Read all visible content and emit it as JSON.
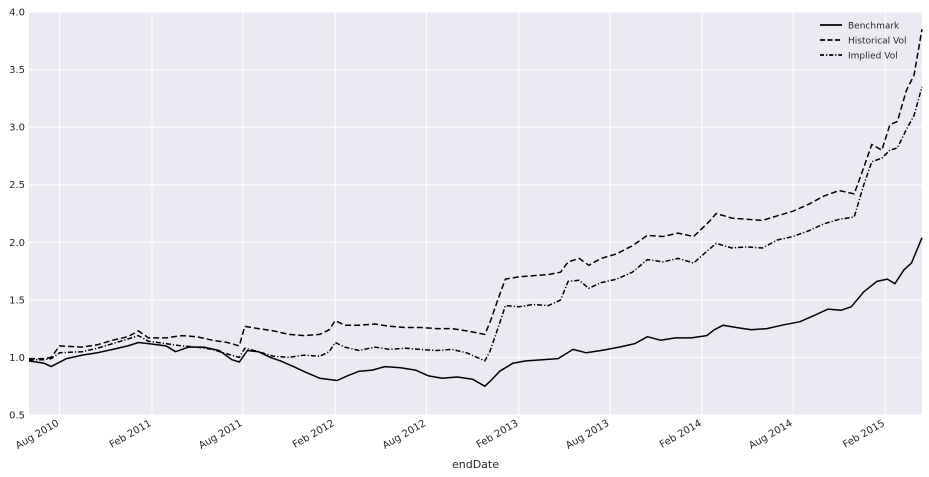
{
  "chart_data": {
    "type": "line",
    "title": "",
    "xlabel": "endDate",
    "ylabel": "",
    "ylim": [
      0.5,
      4.0
    ],
    "y_ticks": [
      "0.5",
      "1.0",
      "1.5",
      "2.0",
      "2.5",
      "3.0",
      "3.5",
      "4.0"
    ],
    "x_range": [
      "2010-06-01",
      "2015-04-15"
    ],
    "x_ticks": [
      {
        "date": "2010-08-01",
        "label": "Aug 2010"
      },
      {
        "date": "2011-02-01",
        "label": "Feb 2011"
      },
      {
        "date": "2011-08-01",
        "label": "Aug 2011"
      },
      {
        "date": "2012-02-01",
        "label": "Feb 2012"
      },
      {
        "date": "2012-08-01",
        "label": "Aug 2012"
      },
      {
        "date": "2013-02-01",
        "label": "Feb 2013"
      },
      {
        "date": "2013-08-01",
        "label": "Aug 2013"
      },
      {
        "date": "2014-02-01",
        "label": "Feb 2014"
      },
      {
        "date": "2014-08-01",
        "label": "Aug 2014"
      },
      {
        "date": "2015-02-01",
        "label": "Feb 2015"
      }
    ],
    "grid": true,
    "legend_position": "top-right",
    "series": [
      {
        "name": "Benchmark",
        "style": "solid",
        "color": "#000000",
        "points": [
          [
            "2010-06-01",
            0.97
          ],
          [
            "2010-07-01",
            0.95
          ],
          [
            "2010-07-15",
            0.92
          ],
          [
            "2010-08-15",
            0.99
          ],
          [
            "2010-09-15",
            1.02
          ],
          [
            "2010-10-15",
            1.04
          ],
          [
            "2010-11-15",
            1.07
          ],
          [
            "2010-12-15",
            1.1
          ],
          [
            "2011-01-05",
            1.13
          ],
          [
            "2011-01-25",
            1.12
          ],
          [
            "2011-03-01",
            1.1
          ],
          [
            "2011-03-20",
            1.05
          ],
          [
            "2011-04-15",
            1.09
          ],
          [
            "2011-05-15",
            1.09
          ],
          [
            "2011-06-15",
            1.06
          ],
          [
            "2011-07-10",
            0.98
          ],
          [
            "2011-07-25",
            0.96
          ],
          [
            "2011-08-10",
            1.06
          ],
          [
            "2011-09-01",
            1.05
          ],
          [
            "2011-09-25",
            1.0
          ],
          [
            "2011-10-15",
            0.97
          ],
          [
            "2011-11-10",
            0.92
          ],
          [
            "2011-12-05",
            0.87
          ],
          [
            "2012-01-01",
            0.82
          ],
          [
            "2012-02-05",
            0.8
          ],
          [
            "2012-02-25",
            0.84
          ],
          [
            "2012-03-20",
            0.88
          ],
          [
            "2012-04-15",
            0.89
          ],
          [
            "2012-05-10",
            0.92
          ],
          [
            "2012-06-10",
            0.91
          ],
          [
            "2012-07-10",
            0.89
          ],
          [
            "2012-08-05",
            0.84
          ],
          [
            "2012-09-01",
            0.82
          ],
          [
            "2012-10-01",
            0.83
          ],
          [
            "2012-11-01",
            0.81
          ],
          [
            "2012-11-25",
            0.75
          ],
          [
            "2012-12-05",
            0.79
          ],
          [
            "2012-12-25",
            0.88
          ],
          [
            "2013-01-20",
            0.95
          ],
          [
            "2013-02-15",
            0.97
          ],
          [
            "2013-03-20",
            0.98
          ],
          [
            "2013-04-20",
            0.99
          ],
          [
            "2013-05-20",
            1.07
          ],
          [
            "2013-06-15",
            1.04
          ],
          [
            "2013-07-15",
            1.06
          ],
          [
            "2013-08-20",
            1.09
          ],
          [
            "2013-09-20",
            1.12
          ],
          [
            "2013-10-15",
            1.18
          ],
          [
            "2013-11-10",
            1.15
          ],
          [
            "2013-12-10",
            1.17
          ],
          [
            "2014-01-10",
            1.17
          ],
          [
            "2014-02-10",
            1.19
          ],
          [
            "2014-02-25",
            1.24
          ],
          [
            "2014-03-15",
            1.28
          ],
          [
            "2014-04-10",
            1.26
          ],
          [
            "2014-05-10",
            1.24
          ],
          [
            "2014-06-10",
            1.25
          ],
          [
            "2014-07-10",
            1.28
          ],
          [
            "2014-08-15",
            1.31
          ],
          [
            "2014-09-15",
            1.37
          ],
          [
            "2014-10-10",
            1.42
          ],
          [
            "2014-11-05",
            1.41
          ],
          [
            "2014-11-25",
            1.44
          ],
          [
            "2014-12-20",
            1.57
          ],
          [
            "2015-01-15",
            1.66
          ],
          [
            "2015-02-05",
            1.68
          ],
          [
            "2015-02-20",
            1.64
          ],
          [
            "2015-03-10",
            1.76
          ],
          [
            "2015-03-25",
            1.82
          ],
          [
            "2015-04-15",
            2.04
          ]
        ]
      },
      {
        "name": "Historical Vol",
        "style": "dashed",
        "color": "#000000",
        "points": [
          [
            "2010-06-01",
            0.99
          ],
          [
            "2010-07-01",
            0.99
          ],
          [
            "2010-07-15",
            1.0
          ],
          [
            "2010-08-01",
            1.1
          ],
          [
            "2010-09-15",
            1.09
          ],
          [
            "2010-10-15",
            1.11
          ],
          [
            "2010-11-15",
            1.15
          ],
          [
            "2010-12-15",
            1.18
          ],
          [
            "2011-01-05",
            1.23
          ],
          [
            "2011-01-25",
            1.17
          ],
          [
            "2011-03-01",
            1.17
          ],
          [
            "2011-04-01",
            1.19
          ],
          [
            "2011-05-01",
            1.18
          ],
          [
            "2011-06-01",
            1.15
          ],
          [
            "2011-07-01",
            1.13
          ],
          [
            "2011-07-25",
            1.1
          ],
          [
            "2011-08-05",
            1.27
          ],
          [
            "2011-09-01",
            1.25
          ],
          [
            "2011-10-01",
            1.23
          ],
          [
            "2011-11-01",
            1.2
          ],
          [
            "2011-12-01",
            1.19
          ],
          [
            "2012-01-01",
            1.2
          ],
          [
            "2012-01-20",
            1.24
          ],
          [
            "2012-02-01",
            1.32
          ],
          [
            "2012-02-20",
            1.28
          ],
          [
            "2012-03-20",
            1.28
          ],
          [
            "2012-04-20",
            1.29
          ],
          [
            "2012-05-20",
            1.27
          ],
          [
            "2012-06-20",
            1.26
          ],
          [
            "2012-07-20",
            1.26
          ],
          [
            "2012-08-20",
            1.25
          ],
          [
            "2012-09-20",
            1.25
          ],
          [
            "2012-10-20",
            1.23
          ],
          [
            "2012-11-25",
            1.2
          ],
          [
            "2012-12-05",
            1.3
          ],
          [
            "2012-12-25",
            1.55
          ],
          [
            "2013-01-05",
            1.68
          ],
          [
            "2013-02-01",
            1.7
          ],
          [
            "2013-03-01",
            1.71
          ],
          [
            "2013-04-01",
            1.72
          ],
          [
            "2013-04-25",
            1.74
          ],
          [
            "2013-05-10",
            1.83
          ],
          [
            "2013-06-01",
            1.86
          ],
          [
            "2013-06-20",
            1.8
          ],
          [
            "2013-07-15",
            1.86
          ],
          [
            "2013-08-15",
            1.9
          ],
          [
            "2013-09-15",
            1.97
          ],
          [
            "2013-10-15",
            2.06
          ],
          [
            "2013-11-15",
            2.05
          ],
          [
            "2013-12-15",
            2.08
          ],
          [
            "2014-01-15",
            2.05
          ],
          [
            "2014-02-15",
            2.18
          ],
          [
            "2014-03-01",
            2.25
          ],
          [
            "2014-04-01",
            2.21
          ],
          [
            "2014-05-01",
            2.2
          ],
          [
            "2014-06-01",
            2.19
          ],
          [
            "2014-07-01",
            2.23
          ],
          [
            "2014-08-01",
            2.27
          ],
          [
            "2014-09-01",
            2.33
          ],
          [
            "2014-10-01",
            2.4
          ],
          [
            "2014-11-01",
            2.45
          ],
          [
            "2014-12-01",
            2.42
          ],
          [
            "2014-12-20",
            2.65
          ],
          [
            "2015-01-05",
            2.85
          ],
          [
            "2015-01-25",
            2.8
          ],
          [
            "2015-02-10",
            3.02
          ],
          [
            "2015-02-25",
            3.05
          ],
          [
            "2015-03-15",
            3.32
          ],
          [
            "2015-03-30",
            3.45
          ],
          [
            "2015-04-15",
            3.85
          ]
        ]
      },
      {
        "name": "Implied Vol",
        "style": "dashdot",
        "color": "#000000",
        "points": [
          [
            "2010-06-01",
            0.98
          ],
          [
            "2010-07-01",
            0.98
          ],
          [
            "2010-07-15",
            0.99
          ],
          [
            "2010-08-01",
            1.04
          ],
          [
            "2010-09-15",
            1.05
          ],
          [
            "2010-10-15",
            1.08
          ],
          [
            "2010-11-15",
            1.12
          ],
          [
            "2010-12-15",
            1.16
          ],
          [
            "2011-01-05",
            1.19
          ],
          [
            "2011-01-25",
            1.14
          ],
          [
            "2011-03-01",
            1.12
          ],
          [
            "2011-04-01",
            1.1
          ],
          [
            "2011-05-01",
            1.09
          ],
          [
            "2011-06-01",
            1.07
          ],
          [
            "2011-07-01",
            1.03
          ],
          [
            "2011-07-25",
            1.0
          ],
          [
            "2011-08-05",
            1.08
          ],
          [
            "2011-09-01",
            1.05
          ],
          [
            "2011-10-01",
            1.01
          ],
          [
            "2011-11-01",
            1.0
          ],
          [
            "2011-12-01",
            1.02
          ],
          [
            "2012-01-01",
            1.01
          ],
          [
            "2012-01-20",
            1.05
          ],
          [
            "2012-02-01",
            1.13
          ],
          [
            "2012-02-20",
            1.09
          ],
          [
            "2012-03-20",
            1.06
          ],
          [
            "2012-04-20",
            1.09
          ],
          [
            "2012-05-20",
            1.07
          ],
          [
            "2012-06-20",
            1.08
          ],
          [
            "2012-07-20",
            1.07
          ],
          [
            "2012-08-20",
            1.06
          ],
          [
            "2012-09-20",
            1.07
          ],
          [
            "2012-10-20",
            1.04
          ],
          [
            "2012-11-25",
            0.97
          ],
          [
            "2012-12-05",
            1.05
          ],
          [
            "2012-12-25",
            1.3
          ],
          [
            "2013-01-05",
            1.45
          ],
          [
            "2013-02-01",
            1.44
          ],
          [
            "2013-03-01",
            1.46
          ],
          [
            "2013-04-01",
            1.45
          ],
          [
            "2013-04-25",
            1.5
          ],
          [
            "2013-05-10",
            1.66
          ],
          [
            "2013-06-01",
            1.67
          ],
          [
            "2013-06-20",
            1.6
          ],
          [
            "2013-07-15",
            1.65
          ],
          [
            "2013-08-15",
            1.68
          ],
          [
            "2013-09-15",
            1.74
          ],
          [
            "2013-10-15",
            1.85
          ],
          [
            "2013-11-15",
            1.83
          ],
          [
            "2013-12-15",
            1.86
          ],
          [
            "2014-01-15",
            1.82
          ],
          [
            "2014-02-15",
            1.94
          ],
          [
            "2014-03-01",
            1.99
          ],
          [
            "2014-04-01",
            1.95
          ],
          [
            "2014-05-01",
            1.96
          ],
          [
            "2014-06-01",
            1.95
          ],
          [
            "2014-07-01",
            2.02
          ],
          [
            "2014-08-01",
            2.05
          ],
          [
            "2014-09-01",
            2.1
          ],
          [
            "2014-10-01",
            2.16
          ],
          [
            "2014-11-01",
            2.2
          ],
          [
            "2014-12-01",
            2.22
          ],
          [
            "2014-12-20",
            2.5
          ],
          [
            "2015-01-05",
            2.7
          ],
          [
            "2015-01-25",
            2.73
          ],
          [
            "2015-02-10",
            2.8
          ],
          [
            "2015-02-25",
            2.82
          ],
          [
            "2015-03-15",
            2.98
          ],
          [
            "2015-03-30",
            3.1
          ],
          [
            "2015-04-15",
            3.35
          ]
        ]
      }
    ]
  }
}
